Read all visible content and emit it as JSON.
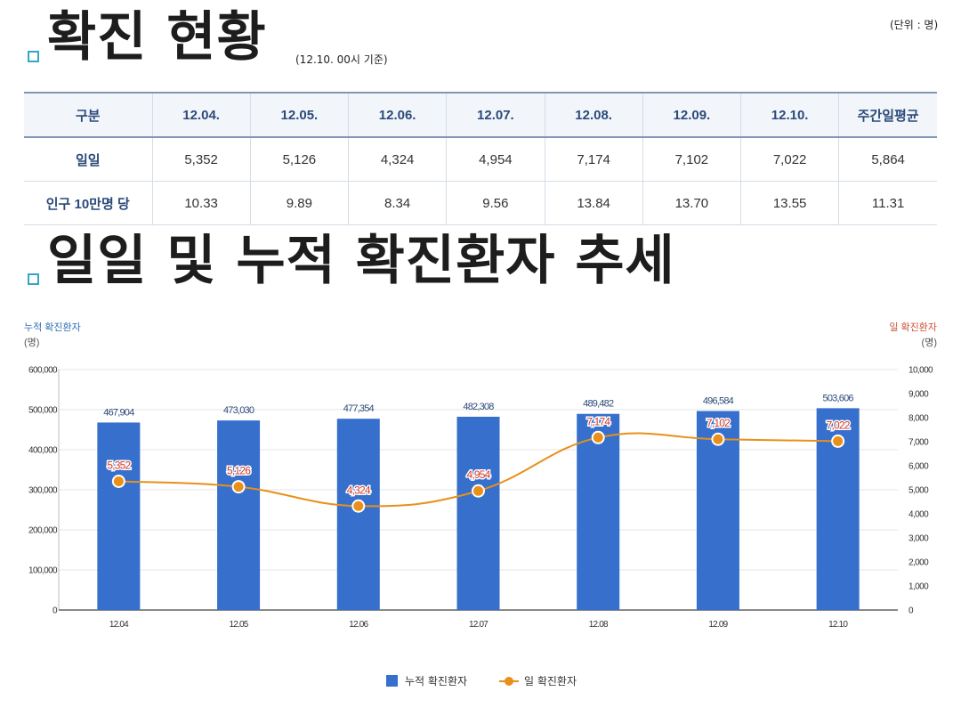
{
  "header": {
    "title": "확진 현황",
    "basis": "(12.10. 00시 기준)",
    "unit": "(단위 : 명)"
  },
  "table": {
    "columns": [
      "구분",
      "12.04.",
      "12.05.",
      "12.06.",
      "12.07.",
      "12.08.",
      "12.09.",
      "12.10.",
      "주간일평균"
    ],
    "rows": [
      {
        "label": "일일",
        "values": [
          "5,352",
          "5,126",
          "4,324",
          "4,954",
          "7,174",
          "7,102",
          "7,022",
          "5,864"
        ]
      },
      {
        "label": "인구 10만명 당",
        "values": [
          "10.33",
          "9.89",
          "8.34",
          "9.56",
          "13.84",
          "13.70",
          "13.55",
          "11.31"
        ]
      }
    ]
  },
  "section2": {
    "title": "일일 및 누적 확진환자 추세"
  },
  "chart_data": {
    "type": "bar+line",
    "categories": [
      "12.04",
      "12.05",
      "12.06",
      "12.07",
      "12.08",
      "12.09",
      "12.10"
    ],
    "series": [
      {
        "name": "누적 확진환자",
        "type": "bar",
        "axis": "left",
        "values": [
          467904,
          473030,
          477354,
          482308,
          489482,
          496584,
          503606
        ],
        "labels": [
          "467,904",
          "473,030",
          "477,354",
          "482,308",
          "489,482",
          "496,584",
          "503,606"
        ]
      },
      {
        "name": "일 확진환자",
        "type": "line",
        "axis": "right",
        "values": [
          5352,
          5126,
          4324,
          4954,
          7174,
          7102,
          7022
        ],
        "labels": [
          "5,352",
          "5,126",
          "4,324",
          "4,954",
          "7,174",
          "7,102",
          "7,022"
        ]
      }
    ],
    "left_axis": {
      "title": "누적 확진환자",
      "unit": "(명)",
      "range": [
        0,
        600000
      ],
      "ticks": [
        "0",
        "100,000",
        "200,000",
        "300,000",
        "400,000",
        "500,000",
        "600,000"
      ]
    },
    "right_axis": {
      "title": "일 확진환자",
      "unit": "(명)",
      "range": [
        0,
        10000
      ],
      "ticks": [
        "0",
        "1,000",
        "2,000",
        "3,000",
        "4,000",
        "5,000",
        "6,000",
        "7,000",
        "8,000",
        "9,000",
        "10,000"
      ]
    },
    "colors": {
      "bar": "#3670cc",
      "line": "#e8901a",
      "left_axis_title": "#2f6fb5",
      "right_axis_title": "#d0503a",
      "bar_label": "#2b4a7a",
      "line_label": "#d13a2b"
    },
    "legend": [
      "누적 확진환자",
      "일 확진환자"
    ],
    "legend_position": "bottom"
  }
}
